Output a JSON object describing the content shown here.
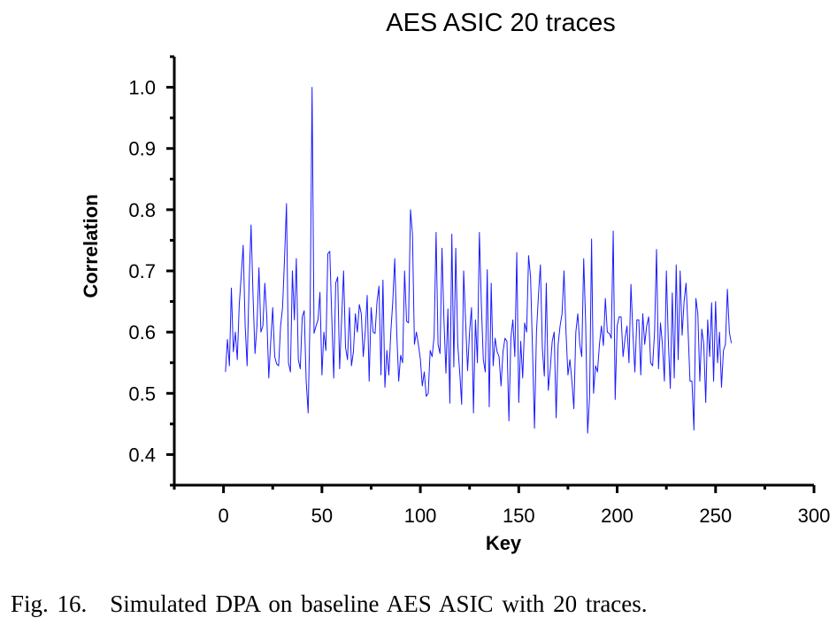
{
  "caption": {
    "label": "Fig. 16.",
    "text": "Simulated DPA on baseline AES ASIC with 20 traces."
  },
  "colors": {
    "line": "#1a1aff",
    "axis": "#000000"
  },
  "chart_data": {
    "type": "line",
    "title": "AES ASIC 20 traces",
    "xlabel": "Key",
    "ylabel": "Correlation",
    "xlim": [
      -25,
      300
    ],
    "ylim": [
      0.35,
      1.05
    ],
    "xticks": [
      0,
      50,
      100,
      150,
      200,
      250,
      300
    ],
    "yticks": [
      0.4,
      0.5,
      0.6,
      0.7,
      0.8,
      0.9,
      1.0
    ],
    "ytick_labels": [
      "0.4",
      "0.5",
      "0.6",
      "0.7",
      "0.8",
      "0.9",
      "1.0"
    ],
    "grid": false,
    "series": [
      {
        "x_start": 1,
        "x_step": 1,
        "values": [
          0.535,
          0.588,
          0.545,
          0.672,
          0.568,
          0.6,
          0.555,
          0.645,
          0.692,
          0.742,
          0.61,
          0.545,
          0.68,
          0.775,
          0.66,
          0.565,
          0.61,
          0.705,
          0.6,
          0.61,
          0.68,
          0.625,
          0.525,
          0.585,
          0.64,
          0.56,
          0.548,
          0.545,
          0.61,
          0.64,
          0.72,
          0.81,
          0.55,
          0.535,
          0.7,
          0.62,
          0.72,
          0.555,
          0.54,
          0.625,
          0.635,
          0.52,
          0.468,
          0.63,
          1.0,
          0.598,
          0.61,
          0.62,
          0.665,
          0.53,
          0.6,
          0.57,
          0.728,
          0.732,
          0.625,
          0.525,
          0.68,
          0.69,
          0.54,
          0.62,
          0.7,
          0.575,
          0.555,
          0.64,
          0.545,
          0.568,
          0.63,
          0.6,
          0.645,
          0.63,
          0.56,
          0.6,
          0.66,
          0.52,
          0.64,
          0.6,
          0.598,
          0.65,
          0.675,
          0.53,
          0.685,
          0.51,
          0.57,
          0.53,
          0.6,
          0.65,
          0.72,
          0.6,
          0.52,
          0.562,
          0.55,
          0.7,
          0.618,
          0.615,
          0.8,
          0.76,
          0.58,
          0.6,
          0.58,
          0.556,
          0.512,
          0.535,
          0.495,
          0.5,
          0.57,
          0.56,
          0.593,
          0.763,
          0.58,
          0.565,
          0.737,
          0.62,
          0.533,
          0.638,
          0.484,
          0.76,
          0.543,
          0.737,
          0.58,
          0.535,
          0.482,
          0.7,
          0.617,
          0.537,
          0.6,
          0.64,
          0.468,
          0.62,
          0.55,
          0.763,
          0.645,
          0.555,
          0.535,
          0.702,
          0.478,
          0.68,
          0.545,
          0.59,
          0.568,
          0.56,
          0.512,
          0.568,
          0.59,
          0.585,
          0.455,
          0.59,
          0.62,
          0.56,
          0.73,
          0.485,
          0.585,
          0.525,
          0.615,
          0.6,
          0.725,
          0.69,
          0.57,
          0.443,
          0.6,
          0.66,
          0.71,
          0.573,
          0.528,
          0.68,
          0.505,
          0.54,
          0.585,
          0.6,
          0.46,
          0.58,
          0.61,
          0.63,
          0.7,
          0.6,
          0.53,
          0.555,
          0.52,
          0.475,
          0.6,
          0.63,
          0.58,
          0.56,
          0.72,
          0.615,
          0.435,
          0.495,
          0.752,
          0.5,
          0.545,
          0.535,
          0.58,
          0.61,
          0.578,
          0.655,
          0.6,
          0.598,
          0.59,
          0.765,
          0.49,
          0.61,
          0.625,
          0.625,
          0.56,
          0.59,
          0.61,
          0.55,
          0.678,
          0.598,
          0.535,
          0.62,
          0.62,
          0.53,
          0.63,
          0.58,
          0.61,
          0.625,
          0.55,
          0.545,
          0.6,
          0.735,
          0.54,
          0.615,
          0.58,
          0.52,
          0.7,
          0.585,
          0.508,
          0.664,
          0.525,
          0.71,
          0.555,
          0.7,
          0.595,
          0.65,
          0.68,
          0.605,
          0.52,
          0.52,
          0.44,
          0.655,
          0.63,
          0.52,
          0.605,
          0.58,
          0.485,
          0.62,
          0.56,
          0.648,
          0.52,
          0.65,
          0.55,
          0.6,
          0.51,
          0.57,
          0.58,
          0.67,
          0.6,
          0.582
        ]
      }
    ]
  }
}
